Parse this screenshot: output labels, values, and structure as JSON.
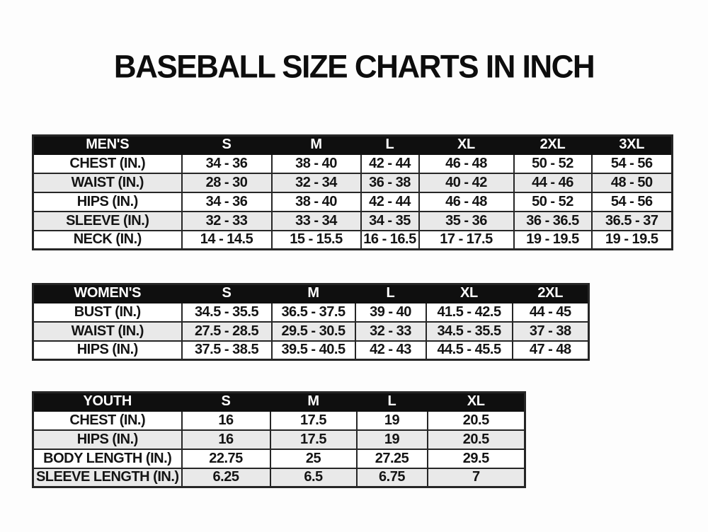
{
  "page": {
    "title": "BASEBALL SIZE CHARTS IN INCH"
  },
  "colors": {
    "header_bg": "#0f0f0f",
    "header_text": "#ffffff",
    "alt_row_bg": "#e9e9e9",
    "row_bg": "#ffffff",
    "border": "#262626",
    "text": "#141414",
    "page_bg": "#fdfdfd"
  },
  "chart_data": [
    {
      "type": "table",
      "title": "MEN'S",
      "columns": [
        "MEN'S",
        "S",
        "M",
        "L",
        "XL",
        "2XL",
        "3XL"
      ],
      "rows": [
        {
          "label": "CHEST (IN.)",
          "values": [
            "34 - 36",
            "38 - 40",
            "42 - 44",
            "46 - 48",
            "50 - 52",
            "54 - 56"
          ]
        },
        {
          "label": "WAIST (IN.)",
          "values": [
            "28 - 30",
            "32 - 34",
            "36 - 38",
            "40 - 42",
            "44 - 46",
            "48 - 50"
          ]
        },
        {
          "label": "HIPS (IN.)",
          "values": [
            "34 - 36",
            "38 - 40",
            "42 - 44",
            "46 - 48",
            "50 - 52",
            "54 - 56"
          ]
        },
        {
          "label": "SLEEVE (IN.)",
          "values": [
            "32 - 33",
            "33 - 34",
            "34 - 35",
            "35 - 36",
            "36 - 36.5",
            "36.5 - 37"
          ]
        },
        {
          "label": "NECK (IN.)",
          "values": [
            "14 - 14.5",
            "15 - 15.5",
            "16 - 16.5",
            "17 - 17.5",
            "19 - 19.5",
            "19 - 19.5"
          ]
        }
      ]
    },
    {
      "type": "table",
      "title": "WOMEN'S",
      "columns": [
        "WOMEN'S",
        "S",
        "M",
        "L",
        "XL",
        "2XL"
      ],
      "rows": [
        {
          "label": "BUST (IN.)",
          "values": [
            "34.5 - 35.5",
            "36.5 - 37.5",
            "39 - 40",
            "41.5 - 42.5",
            "44 - 45"
          ]
        },
        {
          "label": "WAIST (IN.)",
          "values": [
            "27.5 - 28.5",
            "29.5 - 30.5",
            "32 - 33",
            "34.5 - 35.5",
            "37 - 38"
          ]
        },
        {
          "label": "HIPS (IN.)",
          "values": [
            "37.5 - 38.5",
            "39.5 - 40.5",
            "42 - 43",
            "44.5 - 45.5",
            "47 - 48"
          ]
        }
      ]
    },
    {
      "type": "table",
      "title": "YOUTH",
      "columns": [
        "YOUTH",
        "S",
        "M",
        "L",
        "XL"
      ],
      "rows": [
        {
          "label": "CHEST (IN.)",
          "values": [
            "16",
            "17.5",
            "19",
            "20.5"
          ]
        },
        {
          "label": "HIPS (IN.)",
          "values": [
            "16",
            "17.5",
            "19",
            "20.5"
          ]
        },
        {
          "label": "BODY LENGTH (IN.)",
          "values": [
            "22.75",
            "25",
            "27.25",
            "29.5"
          ]
        },
        {
          "label": "SLEEVE LENGTH (IN.)",
          "values": [
            "6.25",
            "6.5",
            "6.75",
            "7"
          ]
        }
      ]
    }
  ]
}
